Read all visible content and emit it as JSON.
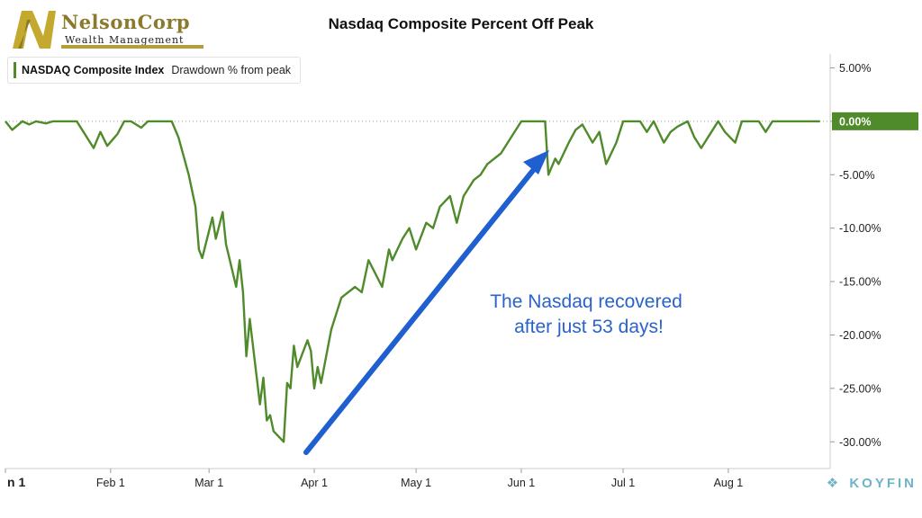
{
  "logo": {
    "name": "NelsonCorp",
    "subtitle": "Wealth Management",
    "mark": "N-monogram-logo"
  },
  "chart_title": "Nasdaq Composite Percent Off Peak",
  "legend": {
    "series": "NASDAQ Composite Index",
    "metric": "Drawdown % from peak"
  },
  "annotation": {
    "line1": "The Nasdaq recovered",
    "line2": "after just 53 days!"
  },
  "brand": {
    "name": "KOYFIN",
    "icon": "koyfin-logo-icon"
  },
  "colors": {
    "line": "#4f8a2b",
    "arrow": "#1f5fcf",
    "annotation_text": "#2a63c8",
    "last_value_badge": "#4f8a2b"
  },
  "chart_data": {
    "type": "line",
    "title": "Nasdaq Composite Percent Off Peak",
    "xlabel": "",
    "ylabel": "",
    "x_tick_labels": [
      "n 1",
      "Feb 1",
      "Mar 1",
      "Apr 1",
      "May 1",
      "Jun 1",
      "Jul 1",
      "Aug 1"
    ],
    "x_tick_dates": [
      "2020-01-01",
      "2020-02-01",
      "2020-03-01",
      "2020-04-01",
      "2020-05-01",
      "2020-06-01",
      "2020-07-01",
      "2020-08-01"
    ],
    "y_tick_labels": [
      "5.00%",
      "0.00%",
      "-5.00%",
      "-10.00%",
      "-15.00%",
      "-20.00%",
      "-25.00%",
      "-30.00%"
    ],
    "y_ticks": [
      5,
      0,
      -5,
      -10,
      -15,
      -20,
      -25,
      -30
    ],
    "ylim": [
      -32.5,
      6.3
    ],
    "xlim": [
      "2020-01-01",
      "2020-08-31"
    ],
    "grid": false,
    "zero_reference_line": "dotted",
    "last_value_label": "0.00%",
    "series": [
      {
        "name": "NASDAQ Composite Index",
        "x": [
          "2020-01-01",
          "2020-01-03",
          "2020-01-06",
          "2020-01-08",
          "2020-01-10",
          "2020-01-13",
          "2020-01-15",
          "2020-01-17",
          "2020-01-20",
          "2020-01-22",
          "2020-01-24",
          "2020-01-27",
          "2020-01-29",
          "2020-01-31",
          "2020-02-03",
          "2020-02-05",
          "2020-02-07",
          "2020-02-10",
          "2020-02-12",
          "2020-02-14",
          "2020-02-17",
          "2020-02-19",
          "2020-02-21",
          "2020-02-24",
          "2020-02-26",
          "2020-02-27",
          "2020-02-28",
          "2020-03-02",
          "2020-03-03",
          "2020-03-05",
          "2020-03-06",
          "2020-03-09",
          "2020-03-10",
          "2020-03-11",
          "2020-03-12",
          "2020-03-13",
          "2020-03-16",
          "2020-03-17",
          "2020-03-18",
          "2020-03-19",
          "2020-03-20",
          "2020-03-23",
          "2020-03-24",
          "2020-03-25",
          "2020-03-26",
          "2020-03-27",
          "2020-03-30",
          "2020-03-31",
          "2020-04-01",
          "2020-04-02",
          "2020-04-03",
          "2020-04-06",
          "2020-04-08",
          "2020-04-09",
          "2020-04-13",
          "2020-04-15",
          "2020-04-17",
          "2020-04-21",
          "2020-04-23",
          "2020-04-24",
          "2020-04-27",
          "2020-04-29",
          "2020-05-01",
          "2020-05-04",
          "2020-05-06",
          "2020-05-08",
          "2020-05-11",
          "2020-05-13",
          "2020-05-15",
          "2020-05-18",
          "2020-05-20",
          "2020-05-22",
          "2020-05-26",
          "2020-05-28",
          "2020-06-01",
          "2020-06-03",
          "2020-06-05",
          "2020-06-08",
          "2020-06-09",
          "2020-06-11",
          "2020-06-12",
          "2020-06-15",
          "2020-06-17",
          "2020-06-19",
          "2020-06-22",
          "2020-06-24",
          "2020-06-26",
          "2020-06-29",
          "2020-07-01",
          "2020-07-06",
          "2020-07-08",
          "2020-07-10",
          "2020-07-13",
          "2020-07-15",
          "2020-07-17",
          "2020-07-20",
          "2020-07-22",
          "2020-07-24",
          "2020-07-27",
          "2020-07-29",
          "2020-07-31",
          "2020-08-03",
          "2020-08-05",
          "2020-08-07",
          "2020-08-10",
          "2020-08-12",
          "2020-08-14",
          "2020-08-17",
          "2020-08-19",
          "2020-08-21",
          "2020-08-24",
          "2020-08-26",
          "2020-08-28"
        ],
        "values": [
          0.0,
          -0.8,
          0.0,
          -0.3,
          0.0,
          -0.2,
          0.0,
          0.0,
          0.0,
          0.0,
          -1.0,
          -2.5,
          -1.0,
          -2.3,
          -1.2,
          0.0,
          0.0,
          -0.6,
          0.0,
          0.0,
          0.0,
          0.0,
          -1.5,
          -5.0,
          -8.0,
          -12.0,
          -12.8,
          -9.0,
          -11.0,
          -8.5,
          -11.5,
          -15.5,
          -13.0,
          -16.0,
          -22.0,
          -18.5,
          -26.5,
          -24.0,
          -28.0,
          -27.5,
          -29.0,
          -30.0,
          -24.5,
          -25.0,
          -21.0,
          -23.0,
          -20.5,
          -21.5,
          -25.0,
          -23.0,
          -24.5,
          -19.5,
          -17.5,
          -16.5,
          -15.5,
          -16.0,
          -13.0,
          -15.5,
          -12.0,
          -13.0,
          -11.0,
          -10.0,
          -12.0,
          -9.5,
          -10.0,
          -8.0,
          -7.0,
          -9.5,
          -7.0,
          -5.5,
          -5.0,
          -4.0,
          -3.0,
          -2.0,
          0.0,
          0.0,
          0.0,
          0.0,
          -5.0,
          -3.5,
          -4.0,
          -2.0,
          -0.8,
          -0.3,
          -2.0,
          -1.0,
          -4.0,
          -2.0,
          0.0,
          0.0,
          -1.0,
          0.0,
          -2.0,
          -1.0,
          -0.5,
          0.0,
          -1.5,
          -2.5,
          -1.0,
          0.0,
          -1.0,
          -2.0,
          0.0,
          0.0,
          0.0,
          -1.0,
          0.0,
          0.0,
          0.0,
          0.0,
          0.0,
          0.0,
          0.0
        ]
      }
    ]
  }
}
